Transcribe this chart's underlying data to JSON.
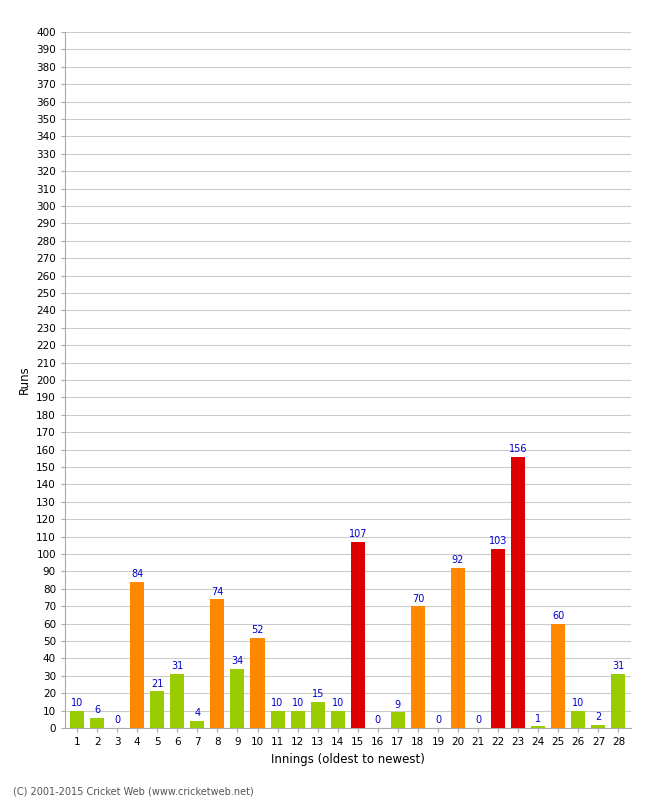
{
  "xlabel": "Innings (oldest to newest)",
  "ylabel": "Runs",
  "innings": [
    1,
    2,
    3,
    4,
    5,
    6,
    7,
    8,
    9,
    10,
    11,
    12,
    13,
    14,
    15,
    16,
    17,
    18,
    19,
    20,
    21,
    22,
    23,
    24,
    25,
    26,
    27,
    28
  ],
  "values": [
    10,
    6,
    0,
    84,
    21,
    31,
    4,
    74,
    34,
    52,
    10,
    10,
    15,
    10,
    107,
    0,
    9,
    70,
    0,
    92,
    0,
    103,
    156,
    1,
    60,
    10,
    2,
    31
  ],
  "colors": [
    "#99cc00",
    "#99cc00",
    "#99cc00",
    "#ff8800",
    "#99cc00",
    "#99cc00",
    "#99cc00",
    "#ff8800",
    "#99cc00",
    "#ff8800",
    "#99cc00",
    "#99cc00",
    "#99cc00",
    "#99cc00",
    "#dd0000",
    "#99cc00",
    "#99cc00",
    "#ff8800",
    "#99cc00",
    "#ff8800",
    "#99cc00",
    "#dd0000",
    "#dd0000",
    "#99cc00",
    "#ff8800",
    "#99cc00",
    "#99cc00",
    "#99cc00"
  ],
  "ylim": [
    0,
    400
  ],
  "yticks": [
    0,
    10,
    20,
    30,
    40,
    50,
    60,
    70,
    80,
    90,
    100,
    110,
    120,
    130,
    140,
    150,
    160,
    170,
    180,
    190,
    200,
    210,
    220,
    230,
    240,
    250,
    260,
    270,
    280,
    290,
    300,
    310,
    320,
    330,
    340,
    350,
    360,
    370,
    380,
    390,
    400
  ],
  "label_color": "#0000cc",
  "label_fontsize": 7.0,
  "background_color": "#ffffff",
  "grid_color": "#cccccc",
  "footer": "(C) 2001-2015 Cricket Web (www.cricketweb.net)"
}
